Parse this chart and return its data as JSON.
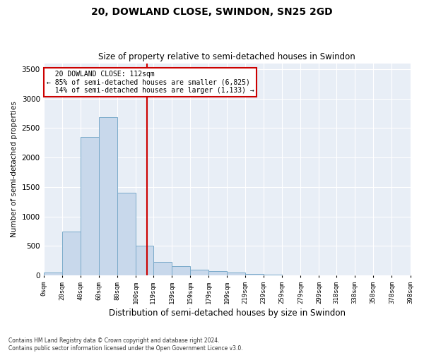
{
  "title1": "20, DOWLAND CLOSE, SWINDON, SN25 2GD",
  "title2": "Size of property relative to semi-detached houses in Swindon",
  "xlabel": "Distribution of semi-detached houses by size in Swindon",
  "ylabel": "Number of semi-detached properties",
  "footer": "Contains HM Land Registry data © Crown copyright and database right 2024.\nContains public sector information licensed under the Open Government Licence v3.0.",
  "property_size": 112,
  "property_label": "20 DOWLAND CLOSE: 112sqm",
  "pct_smaller": 85,
  "count_smaller": 6825,
  "pct_larger": 14,
  "count_larger": 1133,
  "bar_color": "#c8d8eb",
  "bar_edge_color": "#7aaaca",
  "vline_color": "#cc0000",
  "annotation_box_color": "#cc0000",
  "bins": [
    0,
    20,
    40,
    60,
    80,
    100,
    119,
    139,
    159,
    179,
    199,
    219,
    239,
    259,
    279,
    299,
    318,
    338,
    358,
    378,
    398
  ],
  "counts": [
    50,
    750,
    2350,
    2680,
    1400,
    500,
    230,
    160,
    100,
    75,
    50,
    30,
    15,
    0,
    0,
    0,
    0,
    0,
    0,
    0
  ],
  "ylim": [
    0,
    3600
  ],
  "yticks": [
    0,
    500,
    1000,
    1500,
    2000,
    2500,
    3000,
    3500
  ],
  "background_color": "#e8eef6",
  "plot_bg_color": "#e8eef6"
}
